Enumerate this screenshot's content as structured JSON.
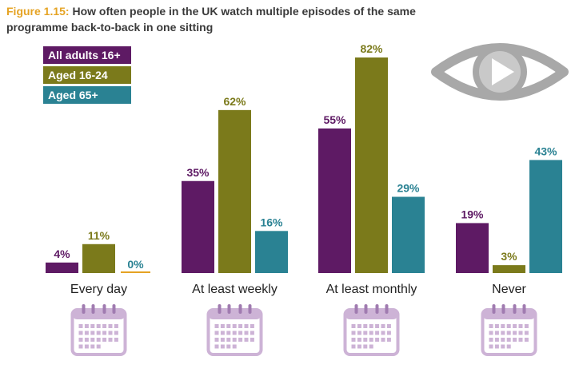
{
  "title": {
    "figure_label": "Figure 1.15:",
    "text": "How often people in the UK watch multiple episodes of the same programme back-to-back in one sitting"
  },
  "colors": {
    "figure_label": "#e5a323",
    "all_adults": "#5e1a64",
    "aged_16_24": "#7b7a1b",
    "aged_65_plus": "#2a8293",
    "calendar": "#cdb3d6",
    "calendar_dark": "#a07bb0",
    "eye": "#a8a8a8"
  },
  "icons": {
    "calendar": "calendar-icon",
    "eye": "eye-play-icon"
  },
  "chart_data": {
    "type": "bar",
    "title": "How often people in the UK watch multiple episodes of the same programme back-to-back in one sitting",
    "categories": [
      "Every day",
      "At least weekly",
      "At least monthly",
      "Never"
    ],
    "series": [
      {
        "name": "All adults 16+",
        "values": [
          4,
          35,
          55,
          19
        ],
        "labels": [
          "4%",
          "35%",
          "55%",
          "19%"
        ]
      },
      {
        "name": "Aged 16-24",
        "values": [
          11,
          62,
          82,
          3
        ],
        "labels": [
          "11%",
          "62%",
          "82%",
          "3%"
        ]
      },
      {
        "name": "Aged 65+",
        "values": [
          0,
          16,
          29,
          43
        ],
        "labels": [
          "0%",
          "16%",
          "29%",
          "43%"
        ]
      }
    ],
    "ylim": [
      0,
      82
    ],
    "grid": false,
    "legend_position": "top-left"
  }
}
